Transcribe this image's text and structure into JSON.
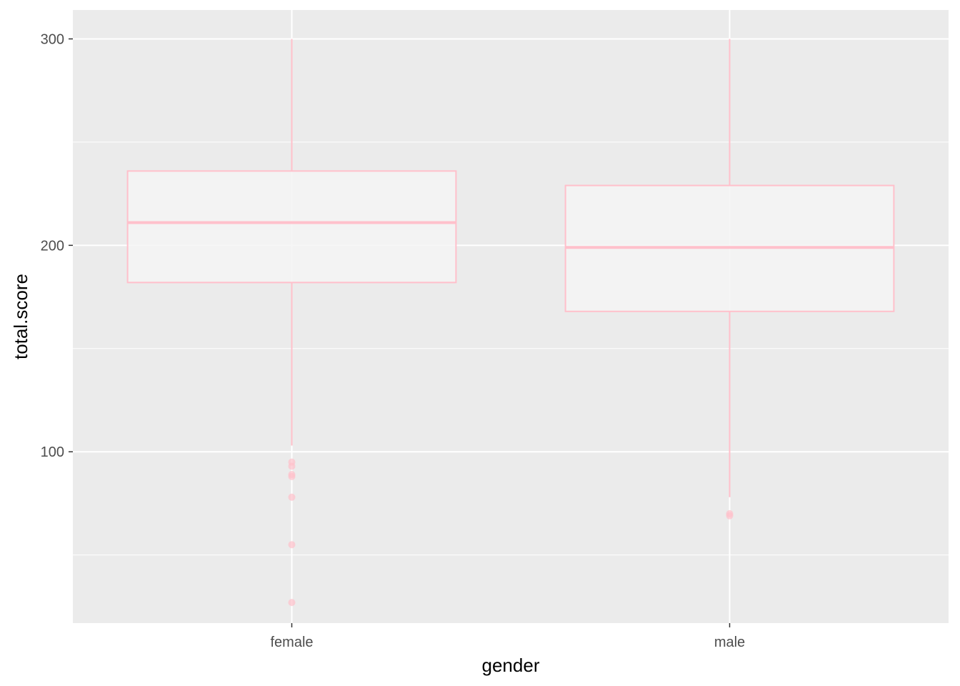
{
  "chart_data": {
    "type": "boxplot",
    "xlabel": "gender",
    "ylabel": "total.score",
    "categories": [
      "female",
      "male"
    ],
    "ylim": [
      17,
      314
    ],
    "yticks": [
      100,
      200,
      300
    ],
    "grid": true,
    "legend": "none",
    "boxes": [
      {
        "category": "female",
        "q1": 182,
        "median": 211,
        "q3": 236,
        "whisker_low": 103,
        "whisker_high": 300,
        "outliers": [
          95,
          93,
          89,
          88,
          78,
          55,
          27
        ]
      },
      {
        "category": "male",
        "q1": 168,
        "median": 199,
        "q3": 229,
        "whisker_low": 78,
        "whisker_high": 300,
        "outliers": [
          70,
          69
        ]
      }
    ],
    "colors": {
      "box_outline": "#ffc0cb",
      "box_fill": "#f4f4f4",
      "panel_background": "#ebebeb",
      "grid": "#ffffff"
    }
  }
}
